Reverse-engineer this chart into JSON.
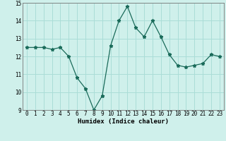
{
  "x": [
    0,
    1,
    2,
    3,
    4,
    5,
    6,
    7,
    8,
    9,
    10,
    11,
    12,
    13,
    14,
    15,
    16,
    17,
    18,
    19,
    20,
    21,
    22,
    23
  ],
  "y": [
    12.5,
    12.5,
    12.5,
    12.4,
    12.5,
    12.0,
    10.8,
    10.2,
    9.0,
    9.8,
    12.6,
    14.0,
    14.8,
    13.6,
    13.1,
    14.0,
    13.1,
    12.1,
    11.5,
    11.4,
    11.5,
    11.6,
    12.1,
    12.0
  ],
  "xlim": [
    -0.5,
    23.5
  ],
  "ylim": [
    9,
    15
  ],
  "yticks": [
    9,
    10,
    11,
    12,
    13,
    14,
    15
  ],
  "xticks": [
    0,
    1,
    2,
    3,
    4,
    5,
    6,
    7,
    8,
    9,
    10,
    11,
    12,
    13,
    14,
    15,
    16,
    17,
    18,
    19,
    20,
    21,
    22,
    23
  ],
  "xlabel": "Humidex (Indice chaleur)",
  "line_color": "#1a6b5a",
  "marker": "*",
  "bg_color": "#cff0eb",
  "grid_color": "#aaddd7",
  "spine_color": "#777777"
}
